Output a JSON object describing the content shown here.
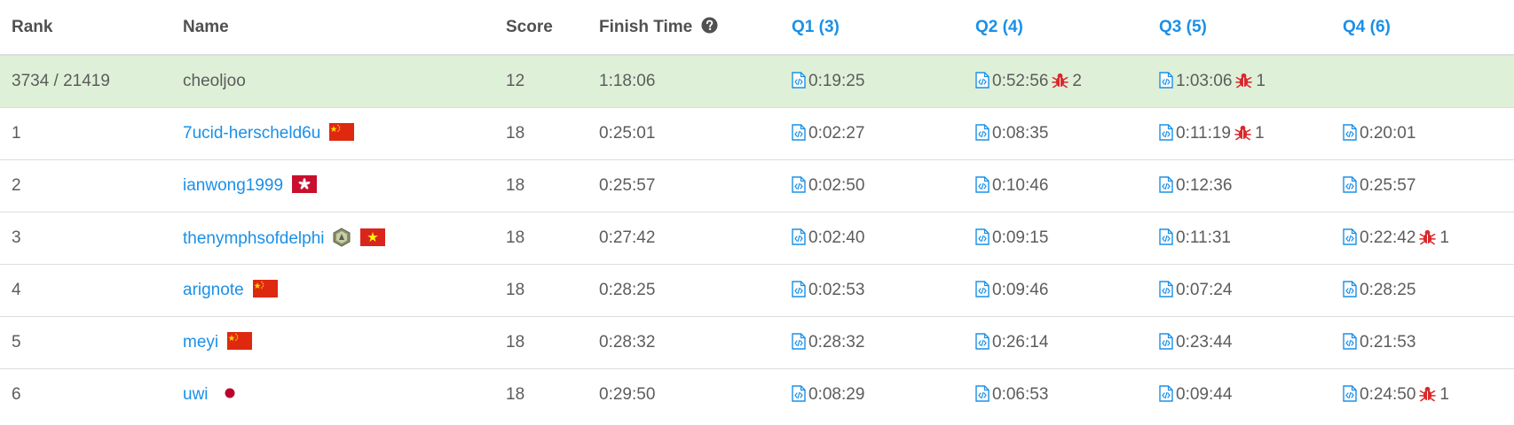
{
  "header": {
    "rank": "Rank",
    "name": "Name",
    "score": "Score",
    "finish_time": "Finish Time",
    "q1": "Q1 (3)",
    "q2": "Q2 (4)",
    "q3": "Q3 (5)",
    "q4": "Q4 (6)"
  },
  "current_user": {
    "rank": "3734 / 21419",
    "name": "cheoljoo",
    "score": "12",
    "finish_time": "1:18:06",
    "q1": {
      "time": "0:19:25",
      "bugs": ""
    },
    "q2": {
      "time": "0:52:56",
      "bugs": "2"
    },
    "q3": {
      "time": "1:03:06",
      "bugs": "1"
    },
    "q4": {
      "time": "",
      "bugs": ""
    }
  },
  "rows": [
    {
      "rank": "1",
      "name": "7ucid-herscheld6u",
      "flag": "cn-flag-icon",
      "score": "18",
      "finish_time": "0:25:01",
      "q1": {
        "time": "0:02:27",
        "bugs": ""
      },
      "q2": {
        "time": "0:08:35",
        "bugs": ""
      },
      "q3": {
        "time": "0:11:19",
        "bugs": "1"
      },
      "q4": {
        "time": "0:20:01",
        "bugs": ""
      }
    },
    {
      "rank": "2",
      "name": "ianwong1999",
      "flag": "hk-flag-icon",
      "score": "18",
      "finish_time": "0:25:57",
      "q1": {
        "time": "0:02:50",
        "bugs": ""
      },
      "q2": {
        "time": "0:10:46",
        "bugs": ""
      },
      "q3": {
        "time": "0:12:36",
        "bugs": ""
      },
      "q4": {
        "time": "0:25:57",
        "bugs": ""
      }
    },
    {
      "rank": "3",
      "name": "thenymphsofdelphi",
      "flag": "vn-flag-icon",
      "badge": "knight-badge-icon",
      "score": "18",
      "finish_time": "0:27:42",
      "q1": {
        "time": "0:02:40",
        "bugs": ""
      },
      "q2": {
        "time": "0:09:15",
        "bugs": ""
      },
      "q3": {
        "time": "0:11:31",
        "bugs": ""
      },
      "q4": {
        "time": "0:22:42",
        "bugs": "1"
      }
    },
    {
      "rank": "4",
      "name": "arignote",
      "flag": "cn-flag-icon",
      "score": "18",
      "finish_time": "0:28:25",
      "q1": {
        "time": "0:02:53",
        "bugs": ""
      },
      "q2": {
        "time": "0:09:46",
        "bugs": ""
      },
      "q3": {
        "time": "0:07:24",
        "bugs": ""
      },
      "q4": {
        "time": "0:28:25",
        "bugs": ""
      }
    },
    {
      "rank": "5",
      "name": "meyi",
      "flag": "cn-flag-icon",
      "score": "18",
      "finish_time": "0:28:32",
      "q1": {
        "time": "0:28:32",
        "bugs": ""
      },
      "q2": {
        "time": "0:26:14",
        "bugs": ""
      },
      "q3": {
        "time": "0:23:44",
        "bugs": ""
      },
      "q4": {
        "time": "0:21:53",
        "bugs": ""
      }
    },
    {
      "rank": "6",
      "name": "uwi",
      "flag": "jp-flag-icon",
      "score": "18",
      "finish_time": "0:29:50",
      "q1": {
        "time": "0:08:29",
        "bugs": ""
      },
      "q2": {
        "time": "0:06:53",
        "bugs": ""
      },
      "q3": {
        "time": "0:09:44",
        "bugs": ""
      },
      "q4": {
        "time": "0:24:50",
        "bugs": "1"
      }
    }
  ],
  "colors": {
    "link": "#1a90e8",
    "highlight_row": "#dff0d8",
    "bug": "#d9292c",
    "border": "#dddddd"
  }
}
